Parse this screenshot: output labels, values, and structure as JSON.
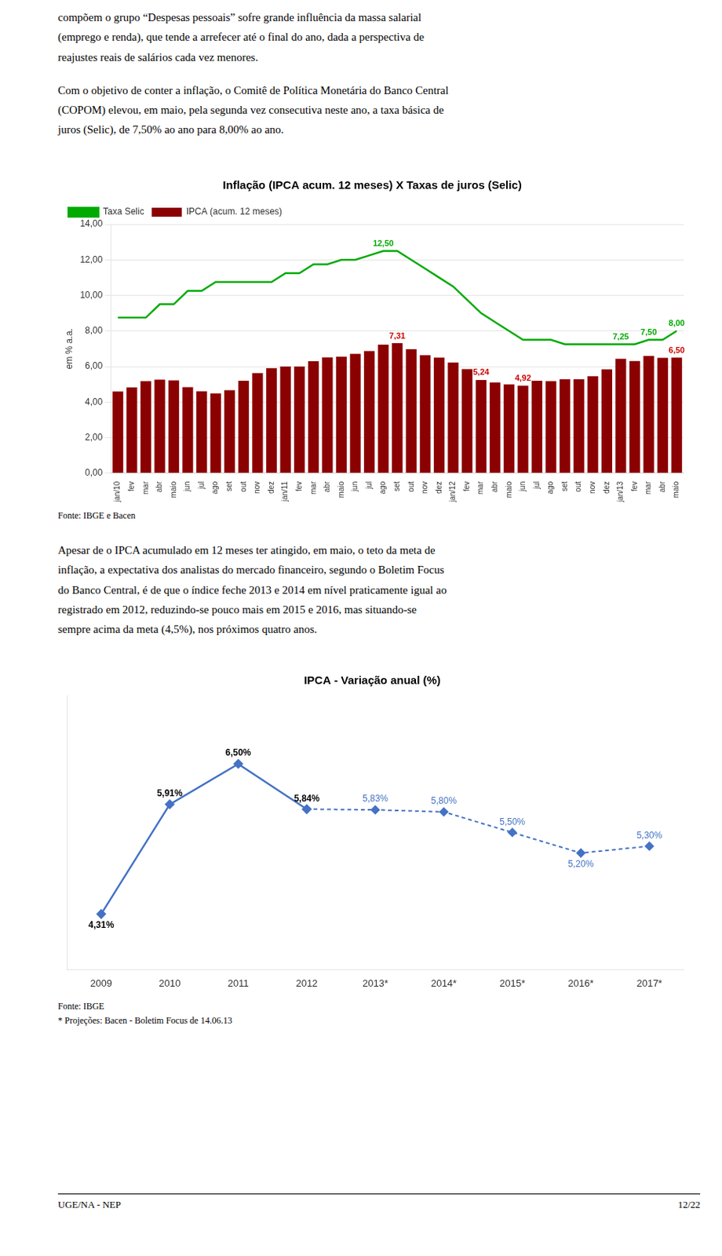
{
  "text_top": [
    "compõem o grupo “Despesas pessoais” sofre grande influência da massa salarial\n(emprego e renda), que tende a arrefecer até o final do ano, dada a perspectiva de\nreajustes reais de salários cada vez menores.",
    "Com o objetivo de conter a inflação, o Comitê de Política Monetária do Banco Central\n(COPOM) elevou, em maio, pela segunda vez consecutiva neste ano, a taxa básica de\njuros (Selic), de 7,50% ao ano para 8,00% ao ano."
  ],
  "text_mid": "Apesar de o IPCA acumulado em 12 meses ter atingido, em maio, o teto da meta de\ninflação, a expectativa dos analistas do mercado financeiro, segundo o Boletim Focus\ndo Banco Central, é de que o índice feche 2013 e 2014 em nível praticamente igual ao\nregistrado em 2012, reduzindo-se pouco mais em 2015 e 2016, mas situando-se\nsempre acima da meta (4,5%), nos próximos quatro anos.",
  "footer": [
    "UGE/NA - NEP",
    "12/22"
  ],
  "chart_data": [
    {
      "type": "bar",
      "title": "Inflação (IPCA acum. 12 meses) X Taxas de juros (Selic)",
      "ylabel": "em % a.a.",
      "categories": [
        "jan/10",
        "fev",
        "mar",
        "abr",
        "maio",
        "jun",
        "jul",
        "ago",
        "set",
        "out",
        "nov",
        "dez",
        "jan/11",
        "fev",
        "mar",
        "abr",
        "maio",
        "jun",
        "jul",
        "ago",
        "set",
        "out",
        "nov",
        "dez",
        "jan/12",
        "fev",
        "mar",
        "abr",
        "maio",
        "jun",
        "jul",
        "ago",
        "set",
        "out",
        "nov",
        "dez",
        "jan/13",
        "fev",
        "mar",
        "abr",
        "maio"
      ],
      "series": [
        {
          "name": "IPCA (acum. 12 meses)",
          "type": "bar",
          "color": "#8B0000",
          "values": [
            4.59,
            4.83,
            5.17,
            5.26,
            5.22,
            4.84,
            4.6,
            4.49,
            4.67,
            5.2,
            5.63,
            5.91,
            6.0,
            6.0,
            6.3,
            6.51,
            6.55,
            6.71,
            6.87,
            7.23,
            7.31,
            6.97,
            6.64,
            6.5,
            6.22,
            5.85,
            5.24,
            5.1,
            4.99,
            4.92,
            5.2,
            5.17,
            5.28,
            5.28,
            5.45,
            5.84,
            6.43,
            6.31,
            6.59,
            6.49,
            6.5
          ]
        },
        {
          "name": "Taxa Selic",
          "type": "line",
          "color": "#00AA00",
          "values": [
            8.75,
            8.75,
            8.75,
            9.5,
            9.5,
            10.25,
            10.25,
            10.75,
            10.75,
            10.75,
            10.75,
            10.75,
            11.25,
            11.25,
            11.75,
            11.75,
            12.0,
            12.0,
            12.25,
            12.5,
            12.5,
            12.0,
            11.5,
            11.0,
            10.5,
            9.75,
            9.0,
            8.5,
            8.0,
            7.5,
            7.5,
            7.5,
            7.25,
            7.25,
            7.25,
            7.25,
            7.25,
            7.25,
            7.5,
            7.5,
            8.0
          ]
        }
      ],
      "ylim": [
        0,
        14
      ],
      "yticks": [
        {
          "value": 0,
          "label": "0,00"
        },
        {
          "value": 2,
          "label": "2,00"
        },
        {
          "value": 4,
          "label": "4,00"
        },
        {
          "value": 6,
          "label": "6,00"
        },
        {
          "value": 8,
          "label": "8,00"
        },
        {
          "value": 10,
          "label": "10,00"
        },
        {
          "value": 12,
          "label": "12,00"
        },
        {
          "value": 14,
          "label": "14,00"
        }
      ],
      "grid": true,
      "legend": "upper left",
      "annotations": [
        {
          "text": "12,50",
          "index": 19,
          "value": 12.5,
          "color": "#00AA00"
        },
        {
          "text": "7,31",
          "index": 20,
          "value": 7.31,
          "color": "#CC0000"
        },
        {
          "text": "5,24",
          "index": 26,
          "value": 5.24,
          "color": "#CC0000"
        },
        {
          "text": "4,92",
          "index": 29,
          "value": 4.92,
          "color": "#CC0000"
        },
        {
          "text": "7,25",
          "index": 36,
          "value": 7.25,
          "color": "#00AA00"
        },
        {
          "text": "7,50",
          "index": 38,
          "value": 7.5,
          "color": "#00AA00"
        },
        {
          "text": "8,00",
          "index": 40,
          "value": 8.0,
          "color": "#00AA00"
        },
        {
          "text": "6,50",
          "index": 40,
          "value": 6.5,
          "color": "#CC0000"
        }
      ],
      "source": [
        "Fonte: IBGE e Bacen"
      ]
    },
    {
      "type": "line",
      "title": "IPCA - Variação anual (%)",
      "categories": [
        "2009",
        "2010",
        "2011",
        "2012",
        "2013*",
        "2014*",
        "2015*",
        "2016*",
        "2017*"
      ],
      "series": [
        {
          "color": "#4472C4",
          "line_style": "solid",
          "marker": "diamond",
          "values": [
            4.31,
            5.91,
            6.5,
            5.84,
            null,
            null,
            null,
            null,
            null
          ],
          "value_labels": [
            "4,31%",
            "5,91%",
            "6,50%",
            "5,84%",
            null,
            null,
            null,
            null,
            null
          ]
        },
        {
          "color": "#4472C4",
          "line_style": "dashed",
          "marker": "diamond",
          "values": [
            null,
            null,
            null,
            5.84,
            5.83,
            5.8,
            5.5,
            5.2,
            5.3
          ],
          "value_labels": [
            null,
            null,
            null,
            null,
            "5,83%",
            "5,80%",
            "5,50%",
            "5,20%",
            "5,30%"
          ]
        }
      ],
      "ylim": [
        3.5,
        7.5
      ],
      "grid": false,
      "tick_labels": "x",
      "data_labels": true,
      "source": [
        "Fonte: IBGE",
        "* Projeções: Bacen - Boletim Focus de 14.06.13"
      ]
    }
  ]
}
